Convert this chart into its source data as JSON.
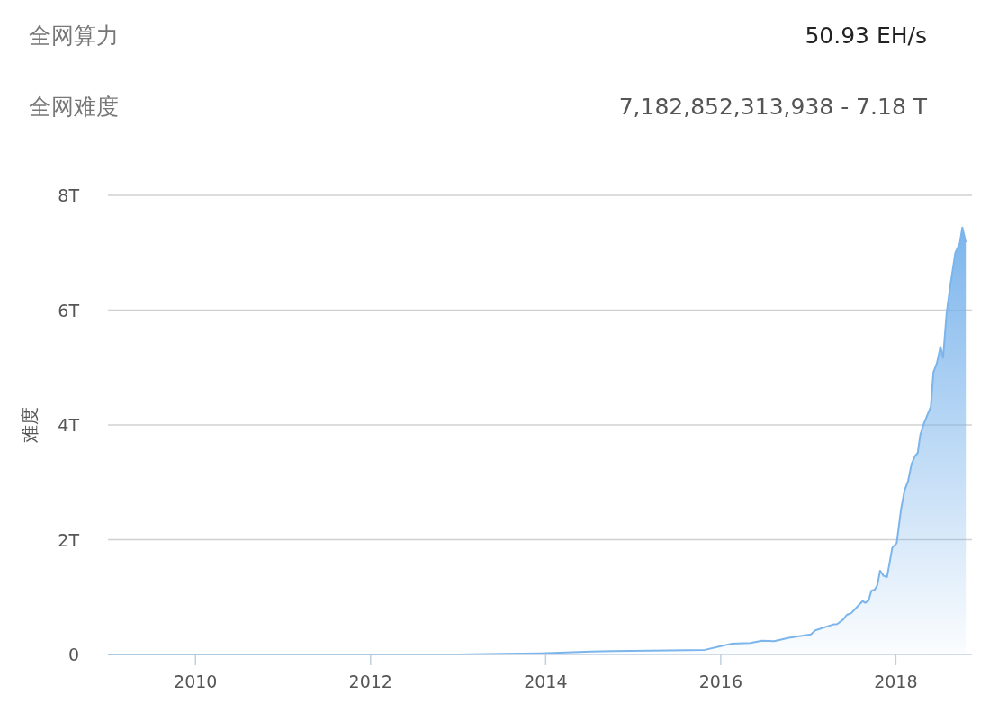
{
  "chart_data": {
    "type": "area",
    "ylabel": "难度",
    "annotations": [
      "全网算力",
      "50.93 EH/s",
      "全网难度",
      "7,182,852,313,938 - 7.18 T"
    ],
    "x": [
      2009.0,
      2010,
      2011,
      2012,
      2013,
      2013.5,
      2013.94,
      2014.52,
      2014.76,
      2015.82,
      2015.99,
      2016.13,
      2016.34,
      2016.47,
      2016.61,
      2016.78,
      2017.03,
      2017.08,
      2017.28,
      2017.33,
      2017.4,
      2017.44,
      2017.49,
      2017.54,
      2017.62,
      2017.65,
      2017.69,
      2017.72,
      2017.76,
      2017.79,
      2017.82,
      2017.86,
      2017.9,
      2017.96,
      2018.01,
      2018.06,
      2018.1,
      2018.14,
      2018.18,
      2018.22,
      2018.25,
      2018.28,
      2018.32,
      2018.4,
      2018.43,
      2018.47,
      2018.51,
      2018.54,
      2018.58,
      2018.62,
      2018.68,
      2018.73,
      2018.76,
      2018.8
    ],
    "values": [
      0,
      0,
      0,
      0,
      0,
      0.01,
      0.02,
      0.05,
      0.06,
      0.08,
      0.14,
      0.19,
      0.2,
      0.24,
      0.23,
      0.29,
      0.35,
      0.42,
      0.52,
      0.53,
      0.61,
      0.69,
      0.72,
      0.8,
      0.93,
      0.9,
      0.94,
      1.11,
      1.13,
      1.21,
      1.46,
      1.37,
      1.35,
      1.86,
      1.94,
      2.53,
      2.86,
      3.02,
      3.32,
      3.46,
      3.51,
      3.83,
      4.02,
      4.32,
      4.92,
      5.08,
      5.36,
      5.17,
      5.94,
      6.4,
      7.0,
      7.16,
      7.44,
      7.18
    ],
    "color": "#7cb5ec",
    "grid": "y",
    "xlim": [
      2009.0,
      2018.87
    ],
    "xticks": [
      2010,
      2012,
      2014,
      2016,
      2018
    ],
    "ylim": [
      0,
      8
    ],
    "yticks": [
      0,
      {
        "value": 2,
        "label": "2T"
      },
      {
        "value": 4,
        "label": "4T"
      },
      {
        "value": 6,
        "label": "6T"
      },
      {
        "value": 8,
        "label": "8T"
      }
    ]
  }
}
